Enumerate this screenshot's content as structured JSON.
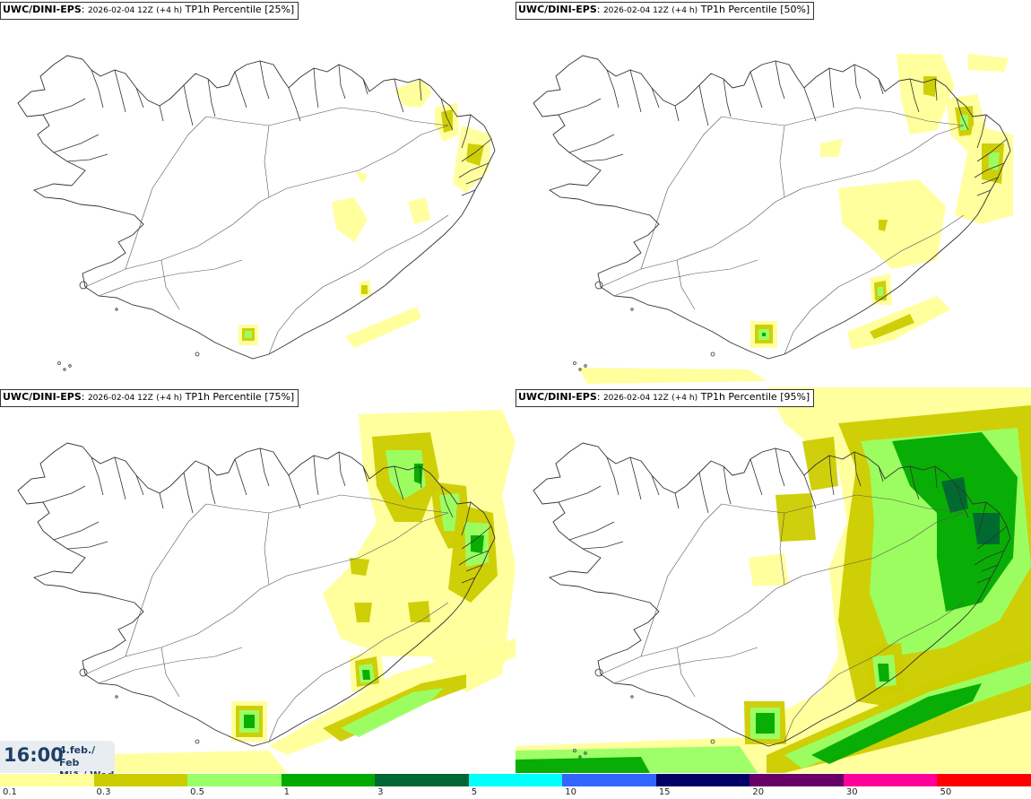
{
  "panels": [
    {
      "source": "UWC/DINI-EPS",
      "run": "2026-02-04 12Z",
      "lead": "(+4 h)",
      "param": "TP1h Percentile [25%]",
      "level": 0
    },
    {
      "source": "UWC/DINI-EPS",
      "run": "2026-02-04 12Z",
      "lead": "(+4 h)",
      "param": "TP1h Percentile [50%]",
      "level": 1
    },
    {
      "source": "UWC/DINI-EPS",
      "run": "2026-02-04 12Z",
      "lead": "(+4 h)",
      "param": "TP1h Percentile [75%]",
      "level": 2
    },
    {
      "source": "UWC/DINI-EPS",
      "run": "2026-02-04 12Z",
      "lead": "(+4 h)",
      "param": "TP1h Percentile [95%]",
      "level": 3
    }
  ],
  "valid_time": {
    "time": "16:00",
    "date_line1": "4.feb./ Feb",
    "date_line2": "Mið./ Wed"
  },
  "legend": {
    "labels": [
      "0.1",
      "0.3",
      "0.5",
      "1",
      "3",
      "5",
      "10",
      "15",
      "20",
      "30",
      "50"
    ],
    "colors": [
      "#ffff99",
      "#cccc00",
      "#99ff66",
      "#00aa00",
      "#006633",
      "#00ffff",
      "#3366ff",
      "#000066",
      "#660066",
      "#ff0099",
      "#ff0000"
    ]
  }
}
